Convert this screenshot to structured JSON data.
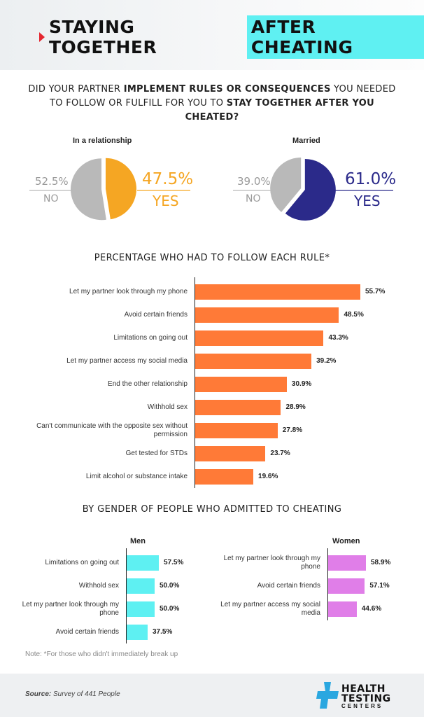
{
  "title": {
    "part1": "STAYING TOGETHER",
    "part2": "AFTER CHEATING"
  },
  "question": {
    "p1": "DID YOUR PARTNER ",
    "b1": "IMPLEMENT RULES OR CONSEQUENCES",
    "p2": " YOU NEEDED TO FOLLOW OR FULFILL FOR YOU TO ",
    "b2": "STAY TOGETHER AFTER YOU CHEATED?"
  },
  "section_rules": "PERCENTAGE WHO HAD TO FOLLOW EACH RULE*",
  "section_gender": "BY GENDER OF PEOPLE WHO ADMITTED TO CHEATING",
  "note": "Note: *For those who didn't immediately break up",
  "source": {
    "label": "Source:",
    "text": " Survey of 441 People"
  },
  "logo": {
    "line1": "HEALTH",
    "line2": "TESTING",
    "line3": "CENTERS"
  },
  "colors": {
    "orange": "#ff7a37",
    "yes_relationship": "#f5a623",
    "yes_married": "#2b2a8a",
    "no": "#b9b9b9",
    "cyan": "#5ff0f2",
    "men_bar": "#5ef0f2",
    "women_bar": "#e07ee8",
    "title_highlight": "#5ff0f2"
  },
  "chart_data": [
    {
      "type": "pie",
      "title": "In a relationship",
      "slices": [
        {
          "label": "YES",
          "value": 47.5,
          "display": "47.5%"
        },
        {
          "label": "NO",
          "value": 52.5,
          "display": "52.5%"
        }
      ]
    },
    {
      "type": "pie",
      "title": "Married",
      "slices": [
        {
          "label": "YES",
          "value": 61.0,
          "display": "61.0%"
        },
        {
          "label": "NO",
          "value": 39.0,
          "display": "39.0%"
        }
      ]
    },
    {
      "type": "bar",
      "title": "PERCENTAGE WHO HAD TO FOLLOW EACH RULE*",
      "orientation": "horizontal",
      "categories": [
        "Let my partner look through my phone",
        "Avoid certain friends",
        "Limitations on going out",
        "Let my partner access my social media",
        "End the other relationship",
        "Withhold sex",
        "Can't communicate with the opposite sex without permission",
        "Get tested for STDs",
        "Limit alcohol or substance intake"
      ],
      "values": [
        55.7,
        48.5,
        43.3,
        39.2,
        30.9,
        28.9,
        27.8,
        23.7,
        19.6
      ],
      "labels": [
        "55.7%",
        "48.5%",
        "43.3%",
        "39.2%",
        "30.9%",
        "28.9%",
        "27.8%",
        "23.7%",
        "19.6%"
      ]
    },
    {
      "type": "bar",
      "title": "Men",
      "orientation": "horizontal",
      "categories": [
        "Limitations on going out",
        "Withhold sex",
        "Let my partner look through my phone",
        "Avoid certain friends"
      ],
      "values": [
        57.5,
        50.0,
        50.0,
        37.5
      ],
      "labels": [
        "57.5%",
        "50.0%",
        "50.0%",
        "37.5%"
      ]
    },
    {
      "type": "bar",
      "title": "Women",
      "orientation": "horizontal",
      "categories": [
        "Let my partner look through my phone",
        "Avoid certain friends",
        "Let my partner access my social media"
      ],
      "values": [
        58.9,
        57.1,
        44.6
      ],
      "labels": [
        "58.9%",
        "57.1%",
        "44.6%"
      ]
    }
  ]
}
